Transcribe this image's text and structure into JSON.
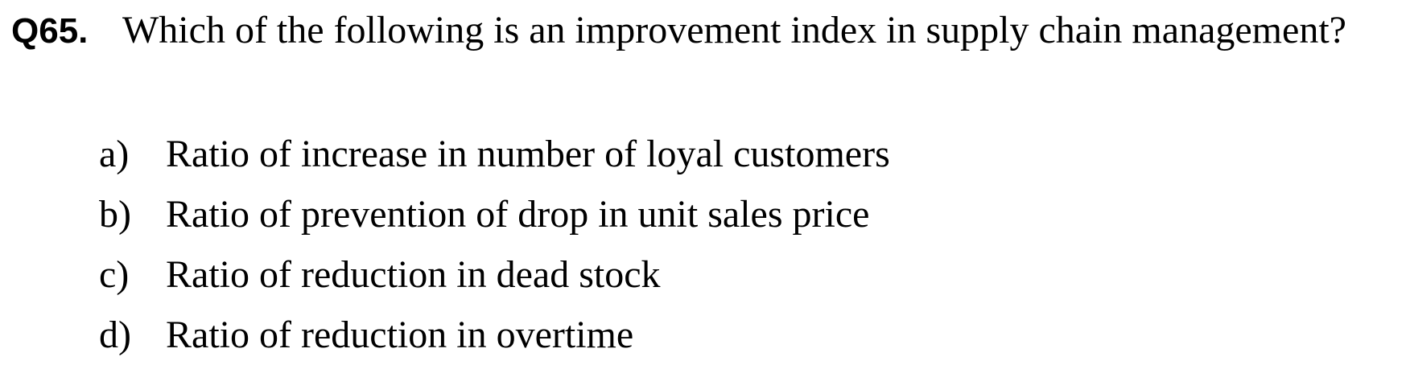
{
  "question": {
    "number": "Q65.",
    "text": "Which of the following is an improvement index in supply chain management?"
  },
  "options": [
    {
      "letter": "a)",
      "text": "Ratio of increase in number of loyal customers"
    },
    {
      "letter": "b)",
      "text": "Ratio of prevention of drop in unit sales price"
    },
    {
      "letter": "c)",
      "text": "Ratio of reduction in dead stock"
    },
    {
      "letter": "d)",
      "text": "Ratio of reduction in overtime"
    }
  ]
}
